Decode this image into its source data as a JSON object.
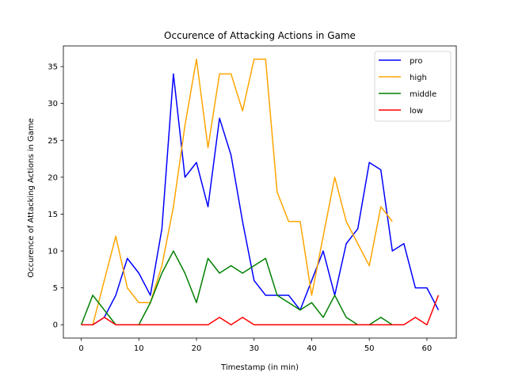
{
  "chart_data": {
    "type": "line",
    "title": "Occurence of Attacking Actions in Game",
    "xlabel": "Timestamp (in min)",
    "ylabel": "Occurence of Attacking Actions in Game",
    "xlim": [
      -3.1,
      65.1
    ],
    "ylim": [
      -1.8,
      37.8
    ],
    "xticks": [
      0,
      10,
      20,
      30,
      40,
      50,
      60
    ],
    "yticks": [
      0,
      5,
      10,
      15,
      20,
      25,
      30,
      35
    ],
    "grid": false,
    "legend_position": "top-right",
    "series": [
      {
        "name": "pro",
        "color": "#0000ff",
        "x": [
          0,
          2,
          4,
          6,
          8,
          10,
          12,
          14,
          16,
          18,
          20,
          22,
          24,
          26,
          28,
          30,
          32,
          34,
          36,
          38,
          40,
          42,
          44,
          46,
          48,
          50,
          52,
          54,
          56,
          58,
          60,
          62
        ],
        "y": [
          0,
          0,
          1,
          4,
          9,
          7,
          4,
          13,
          34,
          20,
          22,
          16,
          28,
          23,
          14,
          6,
          4,
          4,
          4,
          2,
          6,
          10,
          4,
          11,
          13,
          22,
          21,
          10,
          11,
          5,
          5,
          2
        ]
      },
      {
        "name": "high",
        "color": "#ffa500",
        "x": [
          0,
          2,
          4,
          6,
          8,
          10,
          12,
          14,
          16,
          18,
          20,
          22,
          24,
          26,
          28,
          30,
          32,
          34,
          36,
          38,
          40,
          42,
          44,
          46,
          48,
          50,
          52,
          54
        ],
        "y": [
          0,
          0,
          6,
          12,
          5,
          3,
          3,
          8,
          16,
          27,
          36,
          24,
          34,
          34,
          29,
          36,
          36,
          18,
          14,
          14,
          4,
          12,
          20,
          14,
          11,
          8,
          16,
          14
        ]
      },
      {
        "name": "middle",
        "color": "#008000",
        "x": [
          0,
          2,
          4,
          6,
          8,
          10,
          12,
          14,
          16,
          18,
          20,
          22,
          24,
          26,
          28,
          30,
          32,
          34,
          36,
          38,
          40,
          42,
          44,
          46,
          48,
          50,
          52,
          54
        ],
        "y": [
          0,
          4,
          2,
          0,
          0,
          0,
          3,
          7,
          10,
          7,
          3,
          9,
          7,
          8,
          7,
          8,
          9,
          4,
          3,
          2,
          3,
          1,
          4,
          1,
          0,
          0,
          1,
          0
        ]
      },
      {
        "name": "low",
        "color": "#ff0000",
        "x": [
          0,
          2,
          4,
          6,
          8,
          10,
          12,
          14,
          16,
          18,
          20,
          22,
          24,
          26,
          28,
          30,
          32,
          34,
          36,
          38,
          40,
          42,
          44,
          46,
          48,
          50,
          52,
          54,
          56,
          58,
          60,
          62
        ],
        "y": [
          0,
          0,
          1,
          0,
          0,
          0,
          0,
          0,
          0,
          0,
          0,
          0,
          1,
          0,
          1,
          0,
          0,
          0,
          0,
          0,
          0,
          0,
          0,
          0,
          0,
          0,
          0,
          0,
          0,
          1,
          0,
          4
        ]
      }
    ]
  }
}
